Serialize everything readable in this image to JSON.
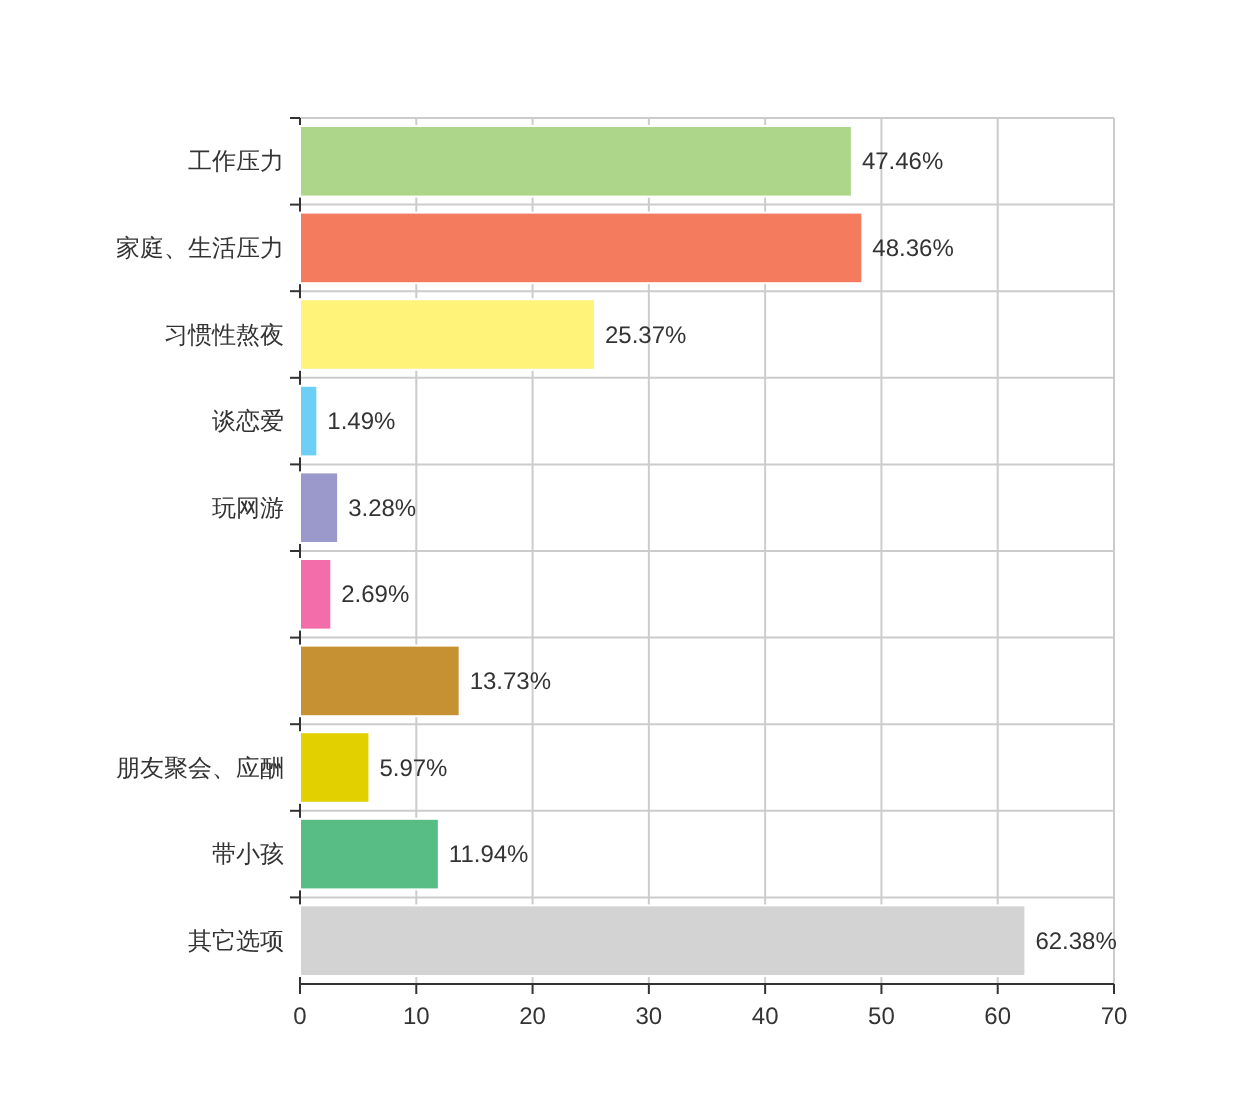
{
  "chart_data": {
    "type": "bar",
    "orientation": "horizontal",
    "categories": [
      "工作压力",
      "家庭、生活压力",
      "习惯性熬夜",
      "谈恋爱",
      "玩网游",
      null,
      null,
      "朋友聚会、应酬",
      "带小孩",
      "其它选项"
    ],
    "values": [
      47.46,
      48.36,
      25.37,
      1.49,
      3.28,
      2.69,
      13.73,
      5.97,
      11.94,
      62.38
    ],
    "value_labels": [
      "47.46%",
      "48.36%",
      "25.37%",
      "1.49%",
      "3.28%",
      "2.69%",
      "13.73%",
      "5.97%",
      "11.94%",
      "62.38%"
    ],
    "colors": [
      "#add68a",
      "#f47b5e",
      "#fff37a",
      "#6dcff6",
      "#9b98cc",
      "#f26da9",
      "#c69132",
      "#e3d000",
      "#58bd85",
      "#d3d3d3"
    ],
    "xlim": [
      0,
      70
    ],
    "xticks": [
      0,
      10,
      20,
      30,
      40,
      50,
      60,
      70
    ],
    "grid": true
  }
}
